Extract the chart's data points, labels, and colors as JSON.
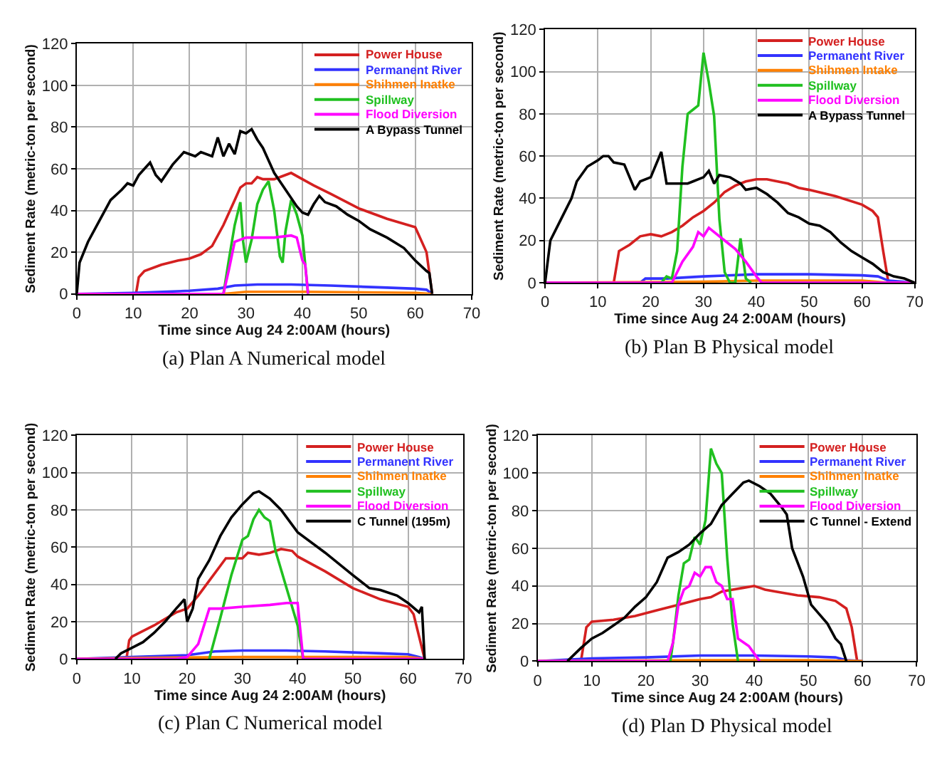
{
  "chart_data": [
    {
      "type": "line",
      "title": "(a) Plan A Numerical model",
      "xlabel": "Time since Aug 24 2:00AM (hours)",
      "ylabel": "Sediment Rate (metric-ton per second)",
      "xlim": [
        0,
        70
      ],
      "ylim": [
        0,
        120
      ],
      "xticks": [
        0,
        10,
        20,
        30,
        40,
        50,
        60,
        70
      ],
      "yticks": [
        0,
        20,
        40,
        60,
        80,
        100,
        120
      ],
      "grid": true,
      "legend": "top right",
      "marker": "none",
      "line_style": "solid",
      "series": [
        {
          "name": "Power House",
          "color": "#d42020",
          "x": [
            10.5,
            11,
            12,
            15,
            18,
            20,
            22,
            24,
            26,
            28,
            29,
            30,
            31,
            32,
            33,
            35,
            37,
            38,
            40,
            42,
            45,
            50,
            55,
            60,
            62,
            62.5,
            63
          ],
          "values": [
            0,
            8,
            11,
            14,
            16,
            17,
            19,
            23,
            33,
            45,
            51,
            53,
            53,
            56,
            55,
            55,
            57,
            58,
            55,
            52,
            48,
            41,
            36,
            32,
            20,
            10,
            0
          ]
        },
        {
          "name": "Permanent River",
          "color": "#3333ff",
          "x": [
            0,
            10,
            20,
            25,
            28,
            32,
            38,
            45,
            55,
            60,
            62,
            63
          ],
          "values": [
            0,
            0.5,
            1.5,
            2.5,
            4,
            4.5,
            4.5,
            4,
            3,
            2.5,
            2,
            0
          ]
        },
        {
          "name": "Shihmen Inatke",
          "color": "#ff8000",
          "x": [
            0,
            26,
            30,
            40,
            60,
            63
          ],
          "values": [
            0,
            0,
            1,
            1,
            0.5,
            0
          ]
        },
        {
          "name": "Spillway",
          "color": "#20c020",
          "x": [
            26,
            27,
            28,
            29,
            29.5,
            30,
            31,
            32,
            33,
            34,
            35,
            36,
            36.5,
            37,
            38,
            39,
            40,
            41
          ],
          "values": [
            0,
            17,
            33,
            44,
            25,
            15,
            26,
            43,
            50,
            54,
            40,
            18,
            15,
            30,
            45,
            38,
            28,
            0
          ]
        },
        {
          "name": "Flood Diversion",
          "color": "#ff00ff",
          "x": [
            0,
            26,
            27,
            28,
            30,
            35,
            38,
            39,
            40,
            40.5,
            41
          ],
          "values": [
            0,
            0,
            12,
            25,
            27,
            27,
            28,
            27,
            16,
            14,
            0
          ]
        },
        {
          "name": "A Bypass Tunnel",
          "color": "#000000",
          "x": [
            0,
            0.5,
            2,
            4,
            6,
            8,
            9,
            10,
            11,
            12,
            13,
            14,
            15,
            17,
            19,
            20,
            21,
            22,
            24,
            25,
            26,
            27,
            28,
            29,
            30,
            31,
            32,
            33,
            34,
            35,
            37,
            39,
            40,
            41,
            42,
            43,
            44,
            46,
            48,
            50,
            52,
            55,
            58,
            60,
            62,
            62.5,
            63
          ],
          "values": [
            0,
            15,
            25,
            35,
            45,
            50,
            53,
            52,
            57,
            60,
            63,
            57,
            54,
            62,
            68,
            67,
            66,
            68,
            66,
            75,
            66,
            72,
            67,
            78,
            77,
            79,
            74,
            70,
            64,
            58,
            50,
            42,
            39,
            38,
            43,
            47,
            44,
            42,
            38,
            35,
            31,
            27,
            22,
            16,
            11,
            10,
            0
          ]
        }
      ]
    },
    {
      "type": "line",
      "title": "(b) Plan B Physical model",
      "xlabel": "Time since Aug 24 2:00AM (hours)",
      "ylabel": "Sediment Rate (metric-ton per second)",
      "xlim": [
        0,
        70
      ],
      "ylim": [
        0,
        120
      ],
      "xticks": [
        0,
        10,
        20,
        30,
        40,
        50,
        60,
        70
      ],
      "yticks": [
        0,
        20,
        40,
        60,
        80,
        100,
        120
      ],
      "grid": true,
      "legend": "top right",
      "marker": "none",
      "line_style": "solid",
      "series": [
        {
          "name": "Power House",
          "color": "#d42020",
          "x": [
            13,
            14,
            16,
            18,
            20,
            22,
            24,
            26,
            28,
            30,
            32,
            34,
            36,
            38,
            40,
            42,
            44,
            46,
            48,
            50,
            55,
            60,
            62,
            63,
            64,
            65,
            70
          ],
          "values": [
            0,
            15,
            18,
            22,
            23,
            22,
            24,
            27,
            31,
            34,
            38,
            43,
            46,
            48,
            49,
            49,
            48,
            47,
            45,
            44,
            41,
            37,
            34,
            31,
            15,
            0,
            0
          ]
        },
        {
          "name": "Permanent River",
          "color": "#3333ff",
          "x": [
            0,
            18,
            19,
            23,
            30,
            40,
            50,
            60,
            63,
            65,
            70
          ],
          "values": [
            0,
            0,
            2,
            2,
            3,
            4,
            4,
            3.5,
            3,
            1,
            0
          ]
        },
        {
          "name": "Shihmen Intake",
          "color": "#ff8000",
          "x": [
            0,
            30,
            40,
            60,
            65,
            70
          ],
          "values": [
            0,
            0.5,
            1,
            1,
            0,
            0
          ]
        },
        {
          "name": "Spillway",
          "color": "#20c020",
          "x": [
            22,
            23,
            24,
            25,
            26,
            27,
            28,
            29,
            30,
            31,
            32,
            33,
            34,
            35,
            36,
            37,
            38,
            39
          ],
          "values": [
            0,
            3,
            2,
            15,
            55,
            80,
            82,
            84,
            109,
            95,
            79,
            30,
            5,
            0,
            0,
            21,
            2,
            0
          ]
        },
        {
          "name": "Flood Diversion",
          "color": "#ff00ff",
          "x": [
            0,
            24,
            26,
            28,
            29,
            30,
            31,
            32,
            34,
            36,
            38,
            40,
            41,
            70
          ],
          "values": [
            0,
            0,
            10,
            17,
            24,
            22,
            26,
            24,
            20,
            16,
            10,
            3,
            0,
            0
          ]
        },
        {
          "name": "A Bypass Tunnel",
          "color": "#000000",
          "x": [
            0,
            1,
            3,
            5,
            6,
            8,
            10,
            11,
            12,
            13,
            15,
            17,
            18,
            20,
            22,
            23,
            25,
            27,
            28,
            30,
            31,
            32,
            33,
            35,
            37,
            38,
            40,
            42,
            44,
            46,
            48,
            50,
            52,
            54,
            56,
            58,
            60,
            62,
            64,
            66,
            68,
            70
          ],
          "values": [
            0,
            20,
            30,
            40,
            48,
            55,
            58,
            60,
            60,
            57,
            56,
            44,
            48,
            50,
            62,
            47,
            47,
            47,
            48,
            50,
            53,
            47,
            51,
            50,
            47,
            44,
            45,
            42,
            38,
            33,
            31,
            28,
            27,
            24,
            19,
            15,
            12,
            9,
            5,
            3,
            2,
            0
          ]
        }
      ]
    },
    {
      "type": "line",
      "title": "(c) Plan C Numerical model",
      "xlabel": "Time since Aug 24 2:00AM (hours)",
      "ylabel": "Sediment Rate (metric-ton per second)",
      "xlim": [
        0,
        70
      ],
      "ylim": [
        0,
        120
      ],
      "xticks": [
        0,
        10,
        20,
        30,
        40,
        50,
        60,
        70
      ],
      "yticks": [
        0,
        20,
        40,
        60,
        80,
        100,
        120
      ],
      "grid": true,
      "legend": "top right",
      "marker": "none",
      "line_style": "solid",
      "series": [
        {
          "name": "Power House",
          "color": "#d42020",
          "x": [
            9,
            9.5,
            10,
            14,
            18,
            20,
            22,
            24,
            26,
            27,
            30,
            31,
            33,
            35,
            37,
            39,
            40,
            45,
            50,
            55,
            60,
            61,
            63
          ],
          "values": [
            0,
            10,
            12,
            18,
            25,
            27,
            34,
            42,
            50,
            54,
            54,
            57,
            56,
            57,
            59,
            58,
            55,
            47,
            38,
            32,
            28,
            24,
            0
          ]
        },
        {
          "name": "Permanent River",
          "color": "#3333ff",
          "x": [
            0,
            10,
            20,
            25,
            30,
            38,
            45,
            55,
            60,
            62,
            63
          ],
          "values": [
            0,
            1,
            2,
            4,
            4.5,
            4.5,
            4,
            3,
            2.5,
            1,
            0
          ]
        },
        {
          "name": "Shihmen Inatke",
          "color": "#ff8000",
          "x": [
            0,
            10,
            30,
            60,
            63
          ],
          "values": [
            0,
            0.5,
            1,
            1,
            0
          ]
        },
        {
          "name": "Spillway",
          "color": "#20c020",
          "x": [
            24,
            26,
            28,
            30,
            31,
            32,
            33,
            34,
            35,
            36,
            38,
            40,
            41
          ],
          "values": [
            0,
            22,
            45,
            64,
            66,
            75,
            80,
            76,
            74,
            58,
            38,
            18,
            0
          ]
        },
        {
          "name": "Flood Diversion",
          "color": "#ff00ff",
          "x": [
            0,
            18,
            20,
            22,
            24,
            26,
            30,
            35,
            38,
            40,
            41,
            63
          ],
          "values": [
            0,
            0,
            1,
            8,
            27,
            27,
            28,
            29,
            30,
            30,
            0,
            0
          ]
        },
        {
          "name": "C Tunnel (195m)",
          "color": "#000000",
          "x": [
            7,
            8,
            10,
            12,
            14,
            16,
            18,
            19.5,
            20,
            21,
            22,
            24,
            26,
            28,
            30,
            32,
            33,
            35,
            37,
            40,
            45,
            50,
            53,
            55,
            58,
            60,
            62,
            62.5,
            63
          ],
          "values": [
            0,
            3,
            6,
            9,
            14,
            20,
            27,
            32,
            20,
            27,
            43,
            53,
            66,
            76,
            83,
            89,
            90,
            86,
            80,
            68,
            57,
            45,
            38,
            37,
            34,
            30,
            25,
            28,
            0
          ]
        }
      ]
    },
    {
      "type": "line",
      "title": "(d) Plan D Physical model",
      "xlabel": "Time since Aug 24 2:00AM (hours)",
      "ylabel": "Sediment Rate (metric-ton per second)",
      "xlim": [
        0,
        70
      ],
      "ylim": [
        0,
        120
      ],
      "xticks": [
        0,
        10,
        20,
        30,
        40,
        50,
        60,
        70
      ],
      "yticks": [
        0,
        20,
        40,
        60,
        80,
        100,
        120
      ],
      "grid": true,
      "legend": "top right",
      "marker": "none",
      "line_style": "solid",
      "series": [
        {
          "name": "Power House",
          "color": "#d42020",
          "x": [
            8,
            9,
            10,
            14,
            18,
            22,
            26,
            30,
            32,
            34,
            36,
            38,
            40,
            41,
            42,
            44,
            48,
            52,
            55,
            57,
            58,
            59
          ],
          "values": [
            0,
            18,
            21,
            22,
            24,
            27,
            30,
            33,
            34,
            37,
            38,
            39,
            40,
            39,
            38,
            37,
            35,
            34,
            32,
            28,
            18,
            0
          ]
        },
        {
          "name": "Permanent River",
          "color": "#3333ff",
          "x": [
            0,
            10,
            20,
            30,
            40,
            50,
            55,
            57,
            60
          ],
          "values": [
            0,
            1.5,
            2,
            3,
            3,
            2.5,
            2,
            0.5,
            0
          ]
        },
        {
          "name": "Shihmen Inatke",
          "color": "#ff8000",
          "x": [
            0,
            30,
            50,
            60
          ],
          "values": [
            0,
            0.5,
            0.5,
            0
          ]
        },
        {
          "name": "Spillway",
          "color": "#20c020",
          "x": [
            24.5,
            25,
            26,
            27,
            28,
            29,
            30,
            31,
            32,
            33,
            34,
            35,
            36,
            37
          ],
          "values": [
            0,
            10,
            35,
            52,
            54,
            66,
            62,
            75,
            113,
            105,
            100,
            55,
            20,
            0
          ]
        },
        {
          "name": "Flood Diversion",
          "color": "#ff00ff",
          "x": [
            0,
            24,
            25,
            26,
            27,
            28,
            29,
            30,
            31,
            32,
            33,
            34,
            35,
            36,
            37,
            39,
            41
          ],
          "values": [
            0,
            0,
            10,
            30,
            38,
            40,
            47,
            45,
            50,
            50,
            42,
            40,
            33,
            33,
            12,
            8,
            0
          ]
        },
        {
          "name": "C Tunnel - Extend",
          "color": "#000000",
          "x": [
            5.5,
            8,
            10,
            12,
            14,
            16,
            18,
            20,
            22,
            24,
            26,
            28,
            30,
            32,
            34,
            36,
            38,
            39,
            41,
            43,
            45,
            46,
            47,
            49,
            50.5,
            52,
            53.5,
            55,
            56,
            57
          ],
          "values": [
            0,
            7,
            12,
            15,
            19,
            23,
            29,
            34,
            42,
            55,
            58,
            62,
            68,
            73,
            83,
            89,
            95,
            96,
            93,
            89,
            82,
            78,
            60,
            45,
            30,
            25,
            20,
            12,
            9,
            0
          ]
        }
      ]
    }
  ]
}
